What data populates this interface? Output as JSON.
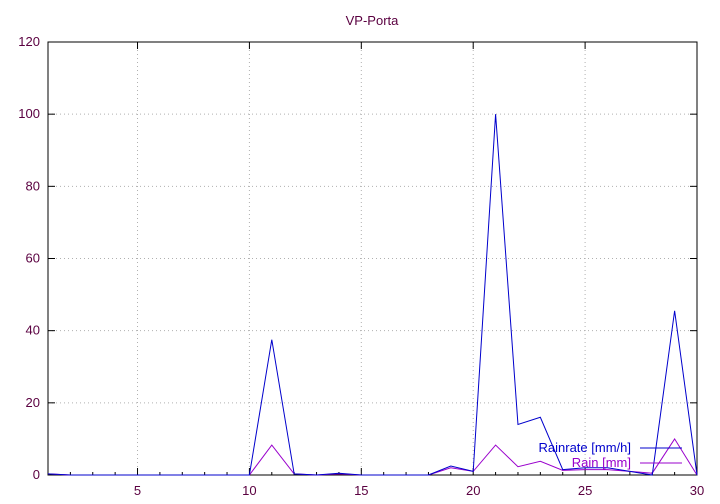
{
  "chart_data": {
    "type": "line",
    "title": "VP-Porta",
    "xlabel": "",
    "ylabel": "",
    "xlim": [
      1,
      30
    ],
    "ylim": [
      0,
      120
    ],
    "x_ticks": [
      5,
      10,
      15,
      20,
      25,
      30
    ],
    "y_ticks": [
      0,
      20,
      40,
      60,
      80,
      100,
      120
    ],
    "grid": true,
    "legend_position": "bottom-right",
    "x": [
      1,
      2,
      3,
      4,
      5,
      6,
      7,
      8,
      9,
      10,
      11,
      12,
      13,
      14,
      15,
      16,
      17,
      18,
      19,
      20,
      21,
      22,
      23,
      24,
      25,
      26,
      27,
      28,
      29,
      30
    ],
    "series": [
      {
        "name": "Rainrate [mm/h]",
        "color": "#0000cc",
        "values": [
          0.3,
          0,
          0,
          0,
          0,
          0,
          0,
          0,
          0,
          0,
          37.5,
          0.3,
          0,
          0.5,
          0,
          0,
          0,
          0,
          2.5,
          1,
          100,
          14,
          16,
          1.5,
          2,
          2,
          1,
          0,
          45.5,
          0
        ]
      },
      {
        "name": "Rain [mm]",
        "color": "#9900cc",
        "values": [
          0.3,
          0,
          0,
          0,
          0,
          0,
          0,
          0,
          0,
          0,
          8.3,
          0.3,
          0,
          0.3,
          0,
          0,
          0,
          0,
          2,
          1,
          8.3,
          2.3,
          3.8,
          1.3,
          1.5,
          1.5,
          1,
          0.5,
          10,
          0
        ]
      }
    ]
  },
  "colors": {
    "text": "#5a0040",
    "axis": "#000000",
    "grid": "#b0b0b0",
    "rainrate": "#0000cc",
    "rain": "#9900cc"
  }
}
